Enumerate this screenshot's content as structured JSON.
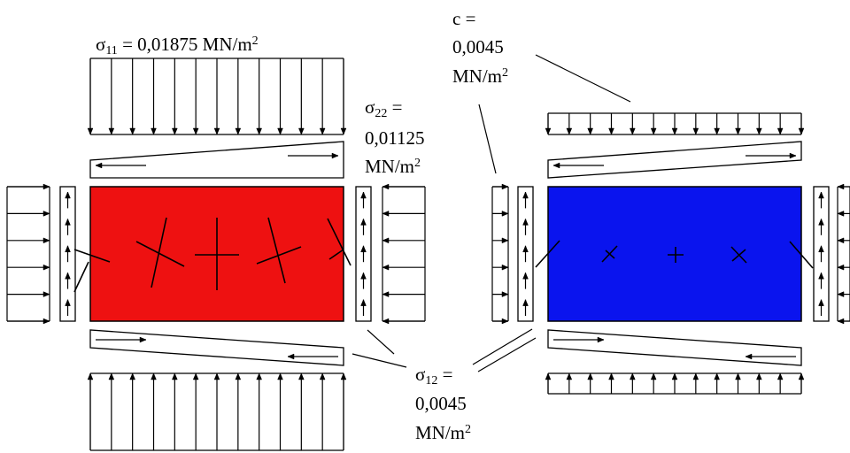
{
  "colors": {
    "left_panel_fill": "#ee1111",
    "right_panel_fill": "#0a14ee",
    "stroke": "#000000"
  },
  "labels": {
    "sigma11": {
      "symbol": "σ",
      "sub": "11",
      "value": " = 0,01875 MN/m",
      "sup": "2"
    },
    "sigma22": {
      "symbol": "σ",
      "sub": "22",
      "eq": " =",
      "value": "0,01125",
      "unit": "MN/m",
      "sup": "2"
    },
    "c": {
      "line1": "c =",
      "value": "0,0045",
      "unit": "MN/m",
      "sup": "2"
    },
    "sigma12": {
      "symbol": "σ",
      "sub": "12",
      "eq": " =",
      "value": "0,0045",
      "unit": "MN/m",
      "sup": "2"
    }
  }
}
